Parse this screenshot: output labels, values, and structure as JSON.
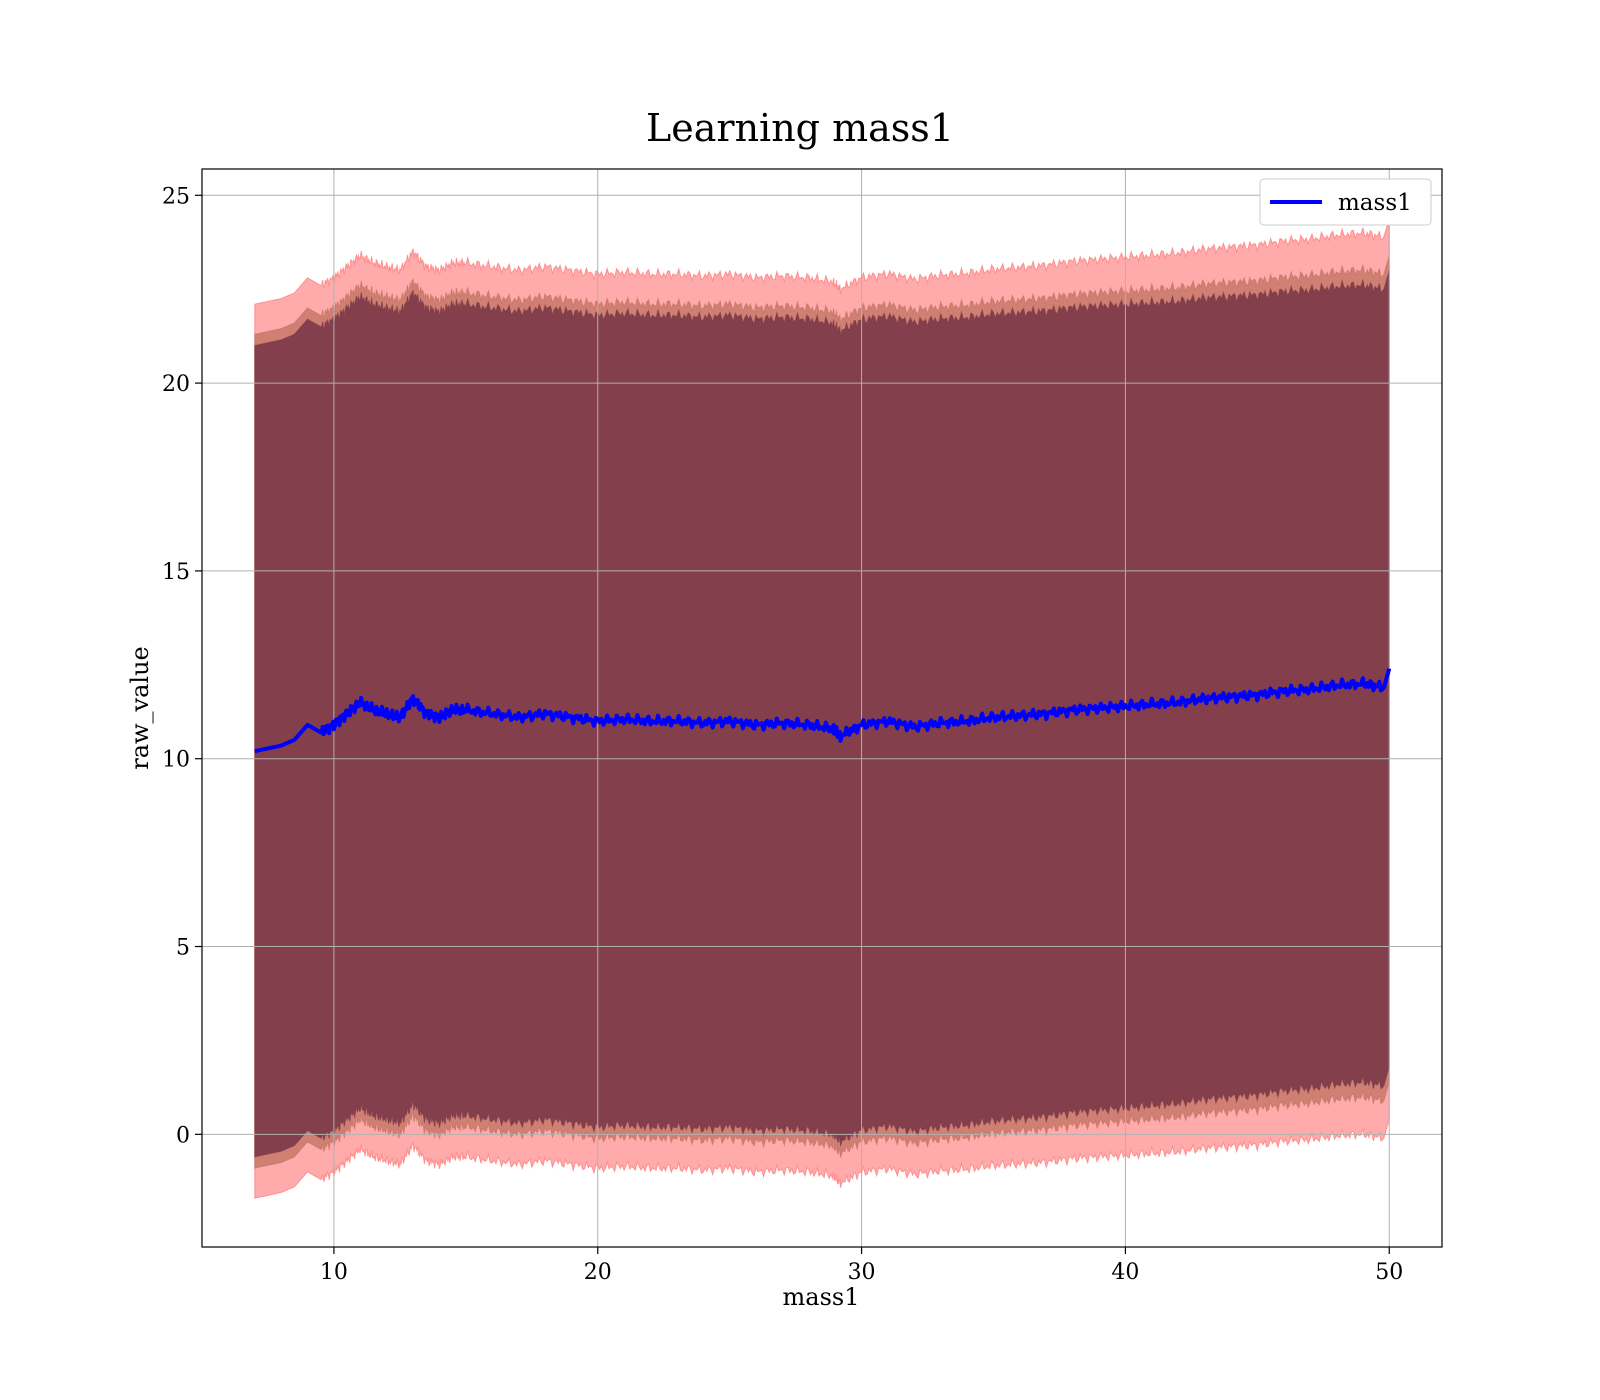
{
  "chart_data": {
    "type": "line",
    "title": "Learning mass1",
    "xlabel": "mass1",
    "ylabel": "raw_value",
    "xlim": [
      5,
      52
    ],
    "ylim": [
      -3,
      25.7
    ],
    "xticks": [
      10,
      20,
      30,
      40,
      50
    ],
    "yticks": [
      0,
      5,
      10,
      15,
      20,
      25
    ],
    "grid": true,
    "legend": {
      "position": "top-right",
      "entries": [
        "mass1"
      ]
    },
    "colors": {
      "line": "#0000ff",
      "band_outer": "#ff6666",
      "band_mid": "#c07060",
      "band_inner": "#7a3848"
    },
    "series": [
      {
        "name": "mass1",
        "x": [
          7,
          8,
          8.5,
          9,
          9.5,
          10,
          10.5,
          11,
          11.5,
          12,
          12.5,
          13,
          13.5,
          14,
          14.5,
          15,
          16,
          17,
          18,
          19,
          20,
          21,
          22,
          23,
          24,
          25,
          26,
          27,
          28,
          28.9,
          29.2,
          30,
          31,
          32,
          33,
          34,
          35,
          36,
          37,
          38,
          39,
          40,
          41,
          42,
          43,
          44,
          45,
          46,
          47,
          48,
          49,
          49.8,
          50
        ],
        "y": [
          10.2,
          10.35,
          10.5,
          10.9,
          10.7,
          10.9,
          11.2,
          11.5,
          11.3,
          11.2,
          11.1,
          11.6,
          11.2,
          11.1,
          11.3,
          11.3,
          11.2,
          11.1,
          11.2,
          11.1,
          11.0,
          11.05,
          11.0,
          11.0,
          10.95,
          11.0,
          10.9,
          10.95,
          10.9,
          10.8,
          10.6,
          10.9,
          11.0,
          10.85,
          10.95,
          11.0,
          11.1,
          11.15,
          11.2,
          11.3,
          11.35,
          11.4,
          11.45,
          11.5,
          11.6,
          11.65,
          11.7,
          11.8,
          11.85,
          11.95,
          12.0,
          11.9,
          12.4
        ],
        "band_outer": [
          11.9,
          11.9,
          12.0
        ],
        "band_mid": [
          11.1,
          11.1,
          11.0
        ],
        "band_inner": [
          10.8,
          10.8,
          10.6
        ]
      }
    ]
  }
}
